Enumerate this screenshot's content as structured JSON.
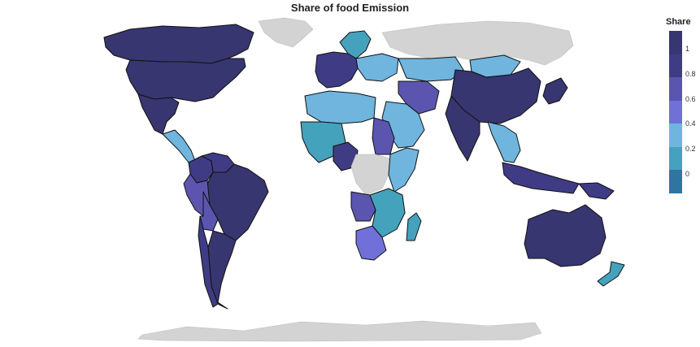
{
  "chart_data": {
    "type": "choropleth",
    "title": "Share of food Emission",
    "colorbar": {
      "title": "Share",
      "ticks": [
        "1",
        "0.8",
        "0.6",
        "0.4",
        "0.2",
        "0"
      ],
      "tick_values": [
        1,
        0.8,
        0.6,
        0.4,
        0.2,
        0
      ],
      "range": [
        -0.15,
        1.15
      ],
      "colorscale": [
        "#2f75a0",
        "#45a2bd",
        "#6fb5de",
        "#7070d8",
        "#5b55b0",
        "#3f3c85",
        "#373670"
      ]
    },
    "no_data_color": "#d3d3d3",
    "regions": [
      {
        "name": "Greenland",
        "share": null
      },
      {
        "name": "Antarctica",
        "share": null
      },
      {
        "name": "Canada",
        "share": 1.05
      },
      {
        "name": "United States",
        "share": 1.05
      },
      {
        "name": "Mexico",
        "share": 1.0
      },
      {
        "name": "Central America",
        "share": 0.3
      },
      {
        "name": "Colombia",
        "share": 0.85
      },
      {
        "name": "Venezuela",
        "share": 0.9
      },
      {
        "name": "Brazil",
        "share": 1.05
      },
      {
        "name": "Peru",
        "share": 0.7
      },
      {
        "name": "Bolivia",
        "share": 0.75
      },
      {
        "name": "Argentina",
        "share": 1.0
      },
      {
        "name": "Chile",
        "share": 0.9
      },
      {
        "name": "Russia",
        "share": null
      },
      {
        "name": "Scandinavia",
        "share": 0.2
      },
      {
        "name": "Western Europe",
        "share": 0.85
      },
      {
        "name": "Eastern Europe",
        "share": 0.3
      },
      {
        "name": "Kazakhstan",
        "share": 0.3
      },
      {
        "name": "Mongolia",
        "share": 0.25
      },
      {
        "name": "China",
        "share": 1.05
      },
      {
        "name": "Japan",
        "share": 1.0
      },
      {
        "name": "India",
        "share": 1.05
      },
      {
        "name": "Iran",
        "share": 0.75
      },
      {
        "name": "Saudi Arabia",
        "share": 0.35
      },
      {
        "name": "North Africa",
        "share": 0.3
      },
      {
        "name": "Sudan",
        "share": 0.6
      },
      {
        "name": "West Africa",
        "share": 0.2
      },
      {
        "name": "Nigeria",
        "share": 0.95
      },
      {
        "name": "Central Africa",
        "share": null
      },
      {
        "name": "East Africa",
        "share": 0.3
      },
      {
        "name": "Angola",
        "share": 0.65
      },
      {
        "name": "Southern Africa",
        "share": 0.2
      },
      {
        "name": "South Africa",
        "share": 0.55
      },
      {
        "name": "Madagascar",
        "share": 0.2
      },
      {
        "name": "Southeast Asia",
        "share": 0.3
      },
      {
        "name": "Indonesia",
        "share": 0.95
      },
      {
        "name": "Papua New Guinea",
        "share": 0.85
      },
      {
        "name": "Australia",
        "share": 1.05
      },
      {
        "name": "New Zealand",
        "share": 0.2
      }
    ]
  }
}
